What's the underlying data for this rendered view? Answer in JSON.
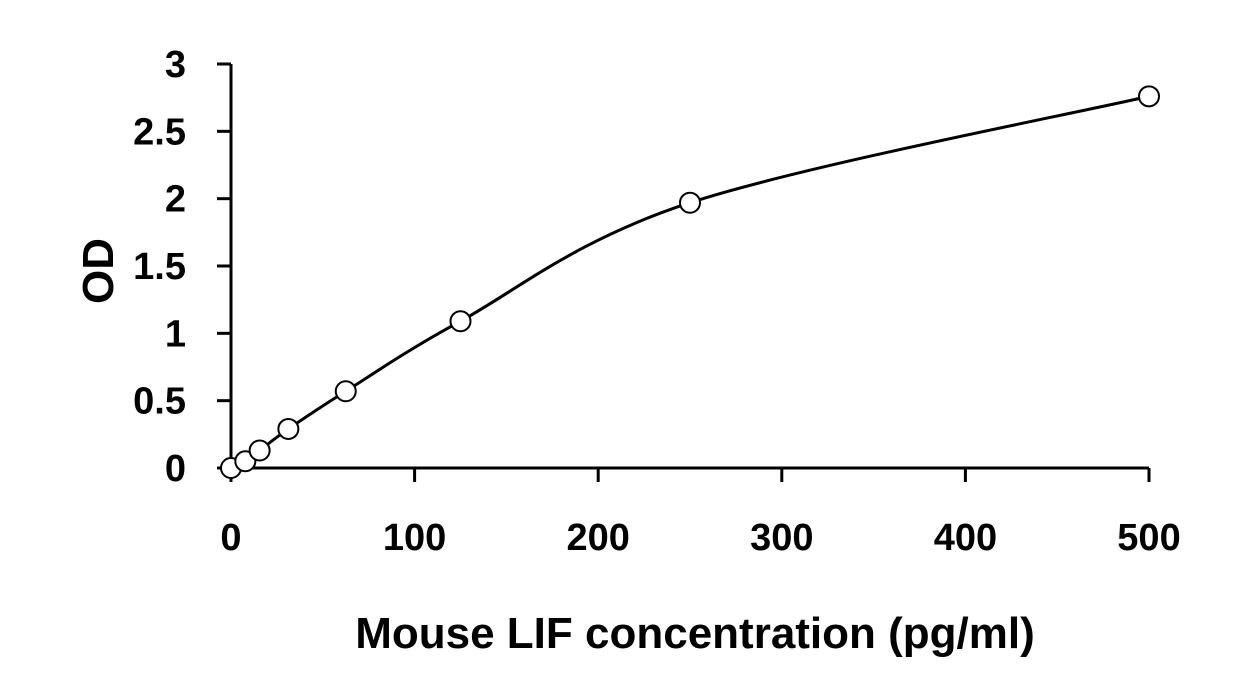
{
  "chart_data": {
    "type": "scatter",
    "title": "",
    "xlabel": "Mouse LIF concentration (pg/ml)",
    "ylabel": "OD",
    "xlim": [
      0,
      500
    ],
    "ylim": [
      0,
      3
    ],
    "xticks": [
      0,
      100,
      200,
      300,
      400,
      500
    ],
    "yticks": [
      0,
      0.5,
      1,
      1.5,
      2,
      2.5,
      3
    ],
    "xtick_labels": [
      "0",
      "100",
      "200",
      "300",
      "400",
      "500"
    ],
    "ytick_labels": [
      "0",
      "0.5",
      "1",
      "1.5",
      "2",
      "2.5",
      "3"
    ],
    "grid": false,
    "legend": "none",
    "series": [
      {
        "x": [
          0,
          7.8,
          15.6,
          31.25,
          62.5,
          125,
          250,
          500
        ],
        "y": [
          0.0,
          0.05,
          0.13,
          0.29,
          0.57,
          1.09,
          1.97,
          2.76
        ],
        "marker": "open-circle",
        "fit": "smooth-curve"
      }
    ]
  }
}
